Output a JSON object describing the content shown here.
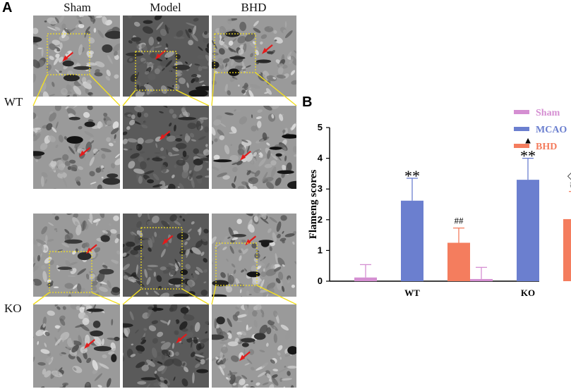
{
  "panel_a": {
    "letter": "A",
    "columns": [
      "Sham",
      "Model",
      "BHD"
    ],
    "rows": [
      "WT",
      "KO"
    ]
  },
  "panel_b": {
    "letter": "B"
  },
  "colors": {
    "sham": "#d58fd2",
    "mcao": "#6b7fcf",
    "bhd": "#f47d5e",
    "zoom_box": "#f2df20",
    "arrow": "#e31b1b"
  },
  "chart_data": {
    "type": "bar",
    "categories": [
      "WT",
      "KO"
    ],
    "series": [
      {
        "name": "Sham",
        "values": [
          0.12,
          0.07
        ],
        "errors": [
          0.42,
          0.38
        ]
      },
      {
        "name": "MCAO",
        "values": [
          2.62,
          3.3
        ],
        "errors": [
          0.73,
          0.7
        ]
      },
      {
        "name": "BHD",
        "values": [
          1.25,
          2.02
        ],
        "errors": [
          0.48,
          0.9
        ]
      }
    ],
    "ylabel": "Flameng scores",
    "xlabel": "",
    "ylim": [
      0,
      5
    ],
    "yticks": [
      0,
      1,
      2,
      3,
      4,
      5
    ],
    "legend_position": "top-right",
    "annotations": [
      {
        "category": "WT",
        "series": "MCAO",
        "text": "**"
      },
      {
        "category": "WT",
        "series": "BHD",
        "text": "##"
      },
      {
        "category": "KO",
        "series": "MCAO",
        "text": "**"
      },
      {
        "category": "KO",
        "series": "MCAO",
        "text": "▲"
      },
      {
        "category": "KO",
        "series": "BHD",
        "text": "##"
      },
      {
        "category": "KO",
        "series": "BHD",
        "text": "◇◇"
      }
    ]
  }
}
